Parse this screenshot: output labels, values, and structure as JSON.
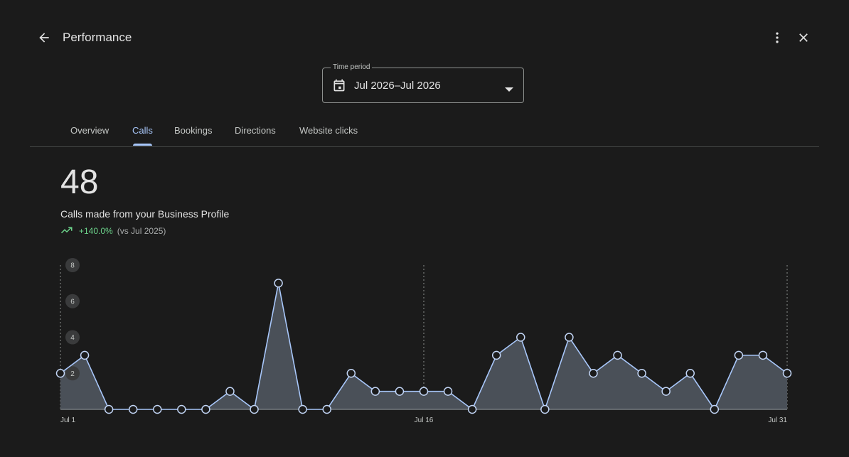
{
  "header": {
    "title": "Performance",
    "back_icon": "arrow-back-icon",
    "more_icon": "more-vert-icon",
    "close_icon": "close-icon"
  },
  "time_period": {
    "label": "Time period",
    "value": "Jul 2026–Jul 2026",
    "icon": "calendar-icon"
  },
  "tabs": [
    {
      "label": "Overview",
      "active": false
    },
    {
      "label": "Calls",
      "active": true
    },
    {
      "label": "Bookings",
      "active": false
    },
    {
      "label": "Directions",
      "active": false
    },
    {
      "label": "Website clicks",
      "active": false
    }
  ],
  "metric": {
    "value": "48",
    "description": "Calls made from your Business Profile",
    "change": "+140.0%",
    "comparison": "(vs Jul 2025)",
    "change_color": "#6dd58c"
  },
  "chart_data": {
    "type": "area",
    "x": [
      1,
      2,
      3,
      4,
      5,
      6,
      7,
      8,
      9,
      10,
      11,
      12,
      13,
      14,
      15,
      16,
      17,
      18,
      19,
      20,
      21,
      22,
      23,
      24,
      25,
      26,
      27,
      28,
      29,
      30,
      31
    ],
    "values": [
      2,
      3,
      0,
      0,
      0,
      0,
      0,
      1,
      0,
      7,
      0,
      0,
      2,
      1,
      1,
      1,
      1,
      0,
      3,
      4,
      0,
      4,
      2,
      3,
      2,
      1,
      2,
      0,
      3,
      3,
      2
    ],
    "x_ticks": [
      {
        "x": 1,
        "label": "Jul 1"
      },
      {
        "x": 16,
        "label": "Jul 16"
      },
      {
        "x": 31,
        "label": "Jul 31"
      }
    ],
    "y_ticks": [
      2,
      4,
      6,
      8
    ],
    "ylim": [
      0,
      8
    ],
    "line_color": "#a8c7fa",
    "fill_color": "#4a5058"
  }
}
